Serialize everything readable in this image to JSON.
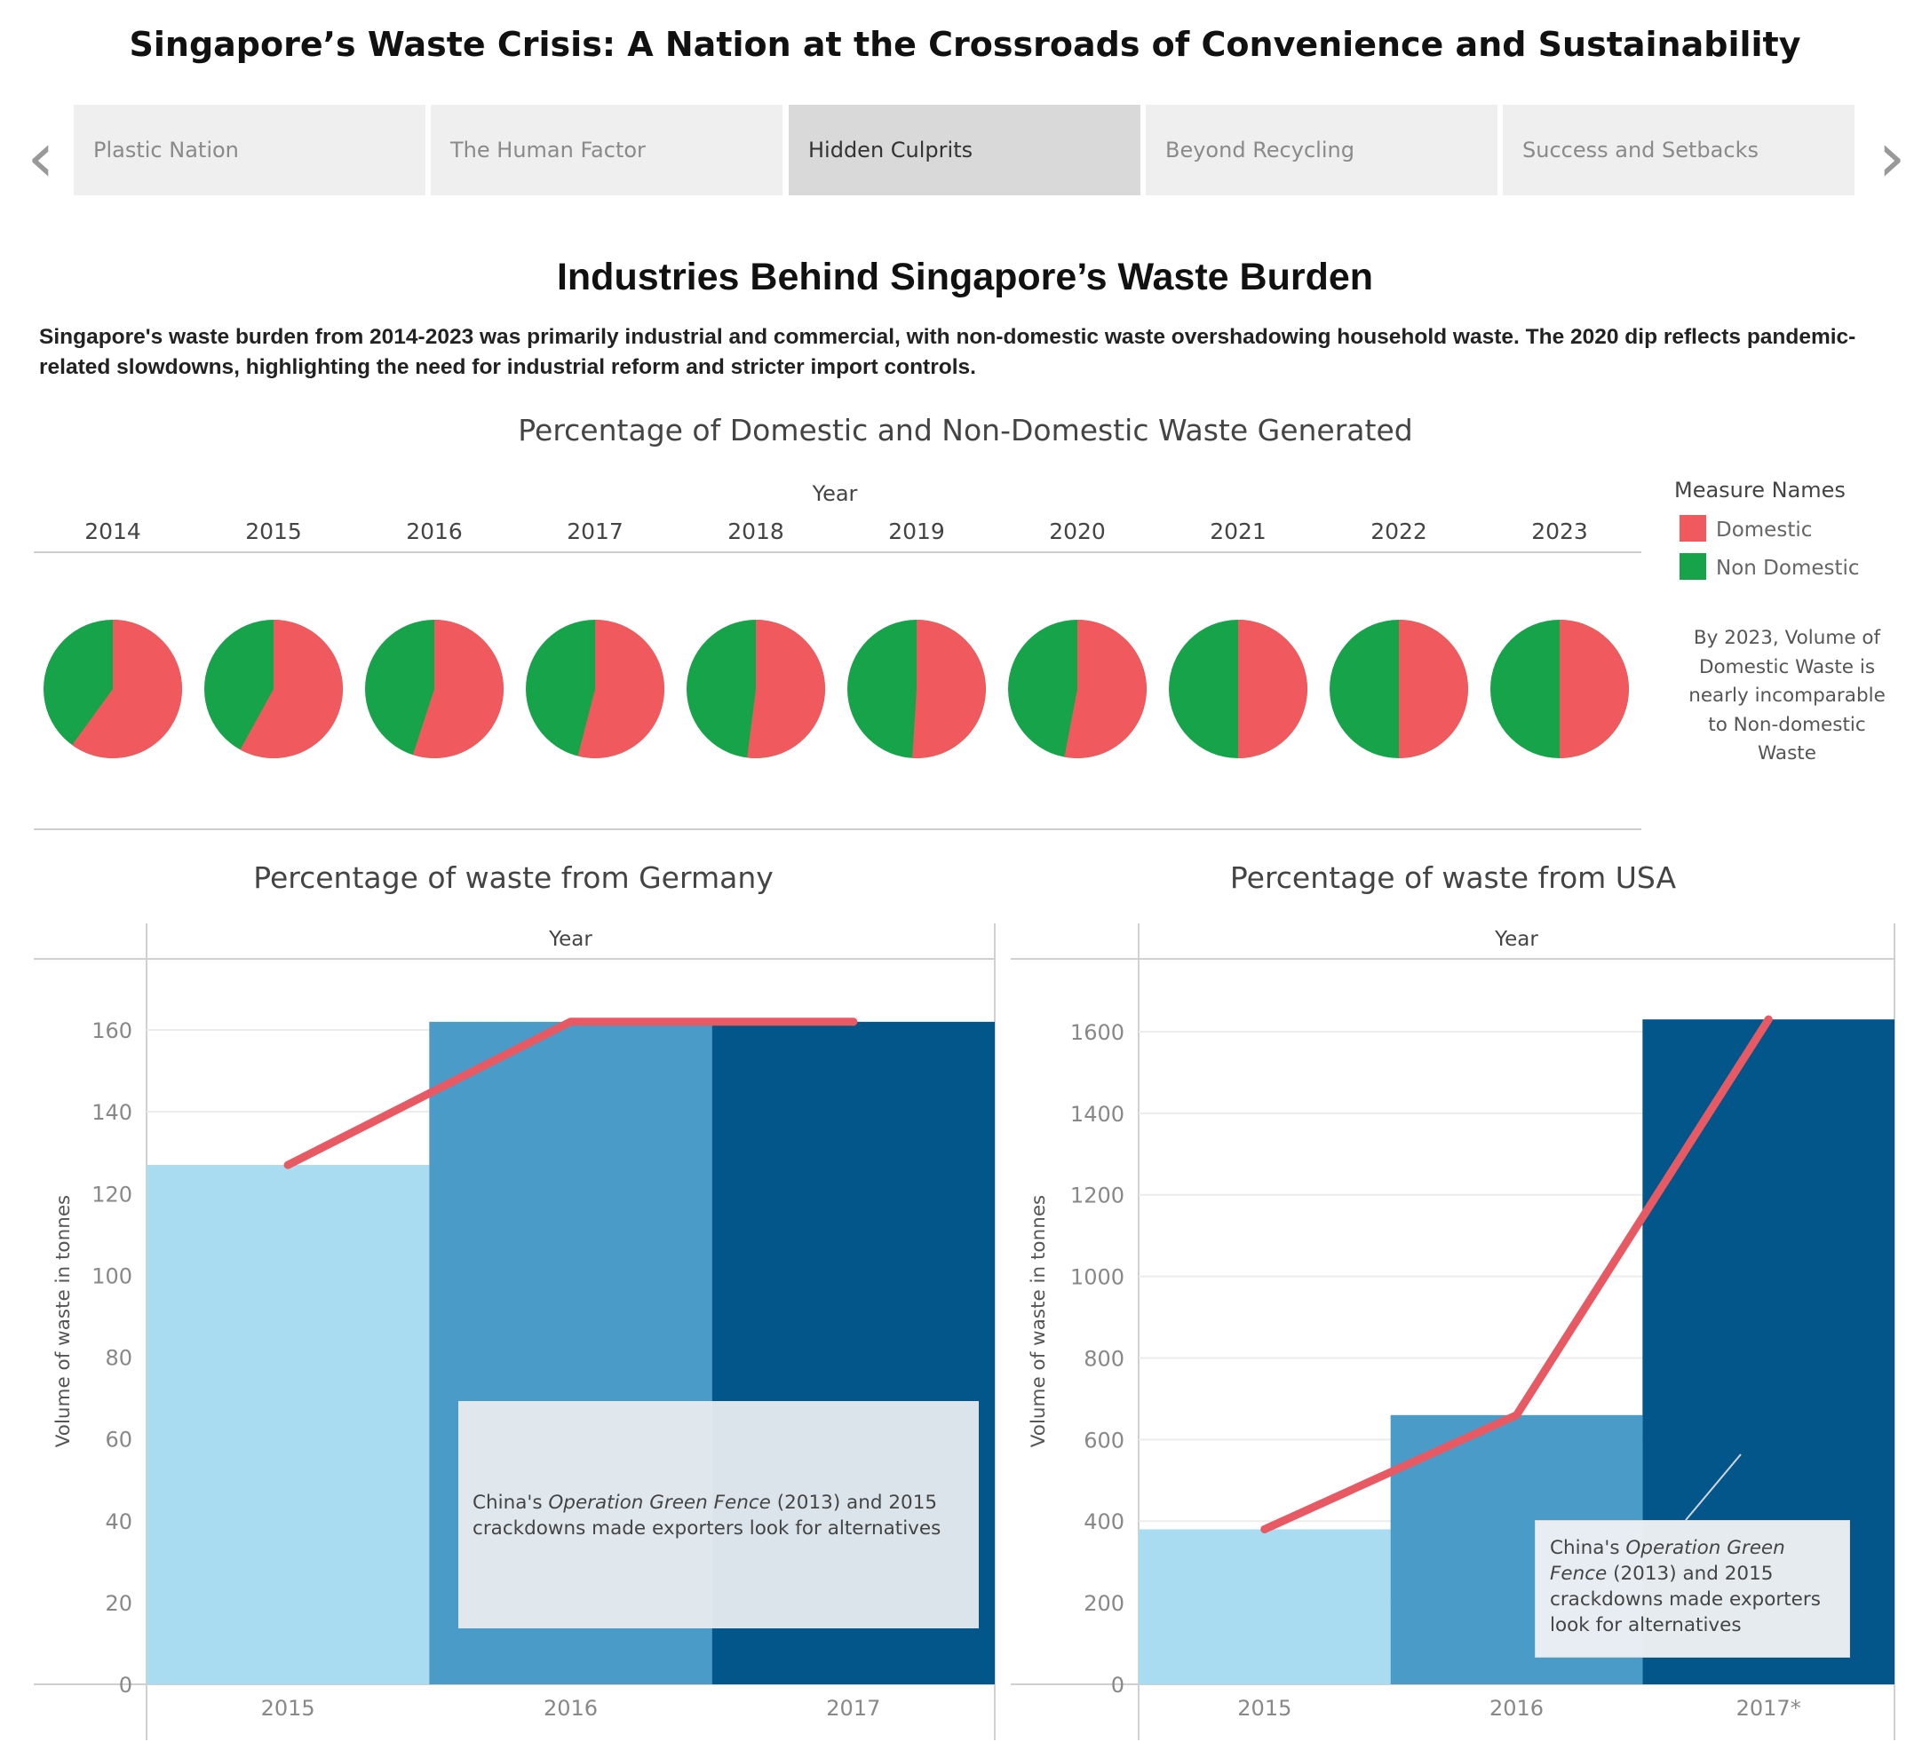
{
  "story": {
    "title": "Singapore’s Waste Crisis: A Nation at the Crossroads of Convenience and Sustainability",
    "nav_prev": "‹",
    "nav_next": "›",
    "tabs": [
      {
        "label": "Plastic Nation",
        "active": false
      },
      {
        "label": "The Human Factor",
        "active": false
      },
      {
        "label": "Hidden Culprits",
        "active": true
      },
      {
        "label": "Beyond Recycling",
        "active": false
      },
      {
        "label": "Success and Setbacks",
        "active": false
      }
    ]
  },
  "section": {
    "title": "Industries Behind Singapore’s Waste Burden",
    "description": "Singapore's waste burden from 2014-2023 was primarily industrial and commercial, with non-domestic waste overshadowing household waste. The 2020 dip reflects pandemic-related slowdowns, highlighting the need for industrial reform and stricter import controls."
  },
  "side_note": "By 2023, Volume of Domestic Waste is nearly incomparable to Non-domestic Waste",
  "annotations": {
    "germany": {
      "pre": "China's ",
      "em": "Operation Green Fence",
      "post": " (2013) and 2015 crackdowns made exporters look for alternatives"
    },
    "usa": {
      "pre": "China's ",
      "em": "Operation Green Fence",
      "post": " (2013) and 2015 crackdowns made exporters look for alternatives"
    }
  },
  "colors": {
    "domestic": "#f05a5f",
    "non_domestic": "#16a34a",
    "line": "#e85a63",
    "bar_light": "#a9dcf0",
    "bar_mid": "#4a9bc8",
    "bar_dark": "#03568a"
  },
  "chart_data": [
    {
      "type": "pie",
      "title": "Percentage of Domestic and Non-Domestic Waste Generated",
      "column_header": "Year",
      "legend_title": "Measure Names",
      "legend_position": "right",
      "legend": [
        "Domestic",
        "Non Domestic"
      ],
      "years": [
        "2014",
        "2015",
        "2016",
        "2017",
        "2018",
        "2019",
        "2020",
        "2021",
        "2022",
        "2023"
      ],
      "series": [
        {
          "name": "Domestic",
          "values": [
            60,
            58,
            55,
            54,
            52,
            51,
            53,
            50,
            50,
            50
          ]
        },
        {
          "name": "Non Domestic",
          "values": [
            40,
            42,
            45,
            46,
            48,
            49,
            47,
            50,
            50,
            50
          ]
        }
      ]
    },
    {
      "type": "bar",
      "title": "Percentage of waste from Germany",
      "column_header": "Year",
      "ylabel": "Volume of waste in tonnes",
      "categories": [
        "2015",
        "2016",
        "2017"
      ],
      "values": [
        127,
        162,
        162
      ],
      "line_values": [
        127,
        162,
        162
      ],
      "ylim": [
        0,
        170
      ],
      "yticks": [
        "160",
        "140",
        "120",
        "100",
        "80",
        "60",
        "40",
        "20",
        "0"
      ],
      "grid": true
    },
    {
      "type": "bar",
      "title": "Percentage of waste from USA",
      "column_header": "Year",
      "ylabel": "Volume of waste in tonnes",
      "categories": [
        "2015",
        "2016",
        "2017*"
      ],
      "values": [
        380,
        660,
        1630
      ],
      "line_values": [
        380,
        660,
        1630
      ],
      "ylim": [
        0,
        1700
      ],
      "yticks": [
        "1600",
        "1400",
        "1200",
        "1000",
        "800",
        "600",
        "400",
        "200",
        "0"
      ],
      "grid": true
    }
  ]
}
